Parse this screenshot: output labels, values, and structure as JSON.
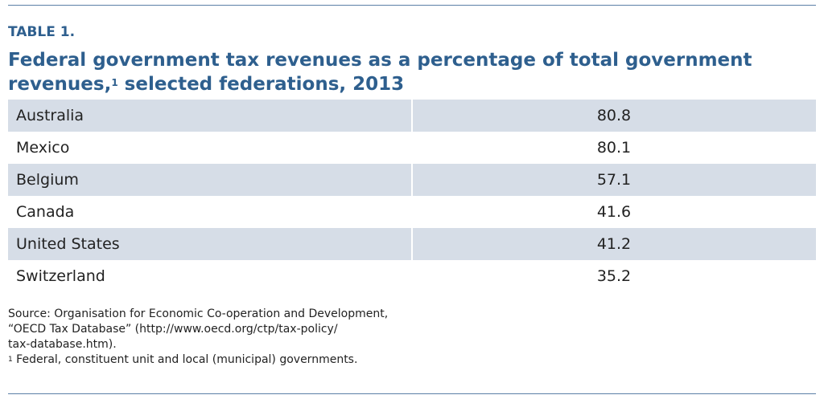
{
  "header": {
    "label": "TABLE 1.",
    "title": {
      "before": "Federal government tax revenues as a percentage of total government revenues,",
      "mark": "1",
      "after": " selected federations, 2013"
    }
  },
  "table": {
    "rows": [
      [
        "Australia",
        80.8
      ],
      [
        "Mexico",
        80.1
      ],
      [
        "Belgium",
        57.1
      ],
      [
        "Canada",
        41.6
      ],
      [
        "United States",
        41.2
      ],
      [
        "Switzerland",
        35.2
      ]
    ]
  },
  "notes": {
    "source": [
      "Source: Organisation for Economic Co-operation and Development,",
      "“OECD Tax Database” (http://www.oecd.org/ctp/tax-policy/",
      "tax-database.htm)."
    ],
    "footnote": {
      "mark": "1",
      "text": " Federal, constituent unit and local (municipal) governments."
    }
  }
}
